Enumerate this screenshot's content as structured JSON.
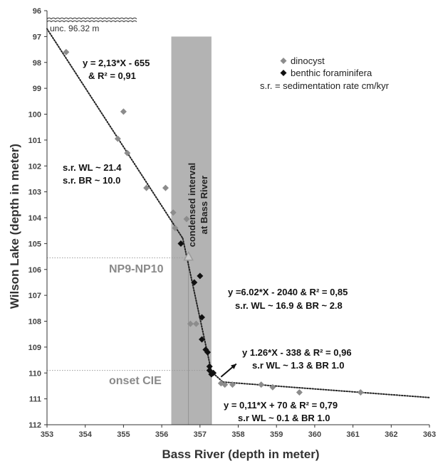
{
  "chart_data": {
    "type": "scatter",
    "xlabel": "Bass River (depth in meter)",
    "ylabel": "Wilson Lake (depth in meter)",
    "xlim": [
      353,
      363
    ],
    "ylim": [
      96,
      112
    ],
    "y_inverted": true,
    "xticks": [
      "353",
      "354",
      "355",
      "356",
      "357",
      "358",
      "359",
      "360",
      "361",
      "362",
      "363"
    ],
    "yticks": [
      "96",
      "97",
      "98",
      "99",
      "100",
      "101",
      "102",
      "103",
      "104",
      "105",
      "106",
      "107",
      "108",
      "109",
      "110",
      "111",
      "112"
    ],
    "grid": false,
    "legend": {
      "position": "top-right",
      "items": [
        "dinocyst",
        "benthic foraminifera",
        "s.r. = sedimentation rate cm/kyr"
      ]
    },
    "colors": {
      "dinocyst": "#8c8c8c",
      "benthic": "#111111",
      "band": "#b3b3b3",
      "triangle": "#9a9a9a",
      "trend": "#222222"
    },
    "band": {
      "label_line1": "condensed interval",
      "label_line2": "at Bass River",
      "x_range": [
        356.25,
        357.3
      ],
      "y_range": [
        97,
        112
      ]
    },
    "unc_label": "unc. 96.32 m",
    "unc_depth": 96.32,
    "series": [
      {
        "name": "dinocyst",
        "marker": "diamond",
        "points": [
          [
            353.5,
            97.6
          ],
          [
            355.0,
            99.9
          ],
          [
            354.85,
            100.95
          ],
          [
            355.1,
            101.5
          ],
          [
            355.6,
            102.85
          ],
          [
            356.1,
            102.85
          ],
          [
            356.3,
            103.8
          ],
          [
            356.35,
            104.4
          ],
          [
            356.65,
            104.05
          ],
          [
            356.75,
            108.1
          ],
          [
            356.9,
            108.1
          ],
          [
            357.55,
            110.4
          ],
          [
            357.65,
            110.45
          ],
          [
            357.85,
            110.45
          ],
          [
            358.6,
            110.45
          ],
          [
            358.9,
            110.55
          ],
          [
            359.6,
            110.75
          ],
          [
            361.2,
            110.75
          ]
        ]
      },
      {
        "name": "benthic foraminifera",
        "marker": "diamond",
        "points": [
          [
            356.5,
            105.0
          ],
          [
            356.85,
            106.5
          ],
          [
            357.0,
            106.25
          ],
          [
            357.05,
            107.85
          ],
          [
            357.05,
            108.7
          ],
          [
            357.15,
            109.1
          ],
          [
            357.2,
            109.2
          ],
          [
            357.25,
            109.9
          ],
          [
            357.3,
            110.05
          ],
          [
            357.35,
            110.0
          ],
          [
            357.25,
            109.75
          ]
        ]
      },
      {
        "name": "triangle",
        "marker": "triangle",
        "points": [
          [
            356.7,
            105.5
          ]
        ]
      }
    ],
    "trendlines": [
      {
        "x": [
          353.0,
          356.55
        ],
        "y": [
          96.7,
          104.8
        ]
      },
      {
        "x": [
          356.55,
          357.3
        ],
        "y": [
          104.8,
          109.95
        ]
      },
      {
        "x": [
          357.3,
          357.6
        ],
        "y": [
          109.95,
          110.35
        ]
      },
      {
        "x": [
          357.6,
          363.0
        ],
        "y": [
          110.35,
          110.95
        ]
      }
    ],
    "reference_lines": [
      {
        "label": "NP9-NP10",
        "depth": 105.55,
        "x_end": 356.75
      },
      {
        "label": "onset CIE",
        "depth": 109.9,
        "x_end": 357.3
      }
    ],
    "arrow": {
      "from": [
        357.55,
        110.15
      ],
      "to": [
        357.95,
        109.65
      ]
    },
    "annotations": [
      {
        "lines": [
          "y = 2,13*X - 655",
          "& R² = 0,91"
        ]
      },
      {
        "lines": [
          "s.r. WL ~ 21.4",
          "s.r. BR ~ 10.0"
        ]
      },
      {
        "lines": [
          "y =6.02*X - 2040 & R² = 0,85",
          "s.r. WL ~ 16.9 & BR ~ 2.8"
        ]
      },
      {
        "lines": [
          "y 1.26*X - 338 & R² = 0,96",
          "s.r WL ~ 1.3 & BR 1.0"
        ]
      },
      {
        "lines": [
          "y = 0,11*X + 70 & R² = 0,79",
          "s.r WL ~ 0.1 & BR 1.0"
        ]
      }
    ]
  }
}
